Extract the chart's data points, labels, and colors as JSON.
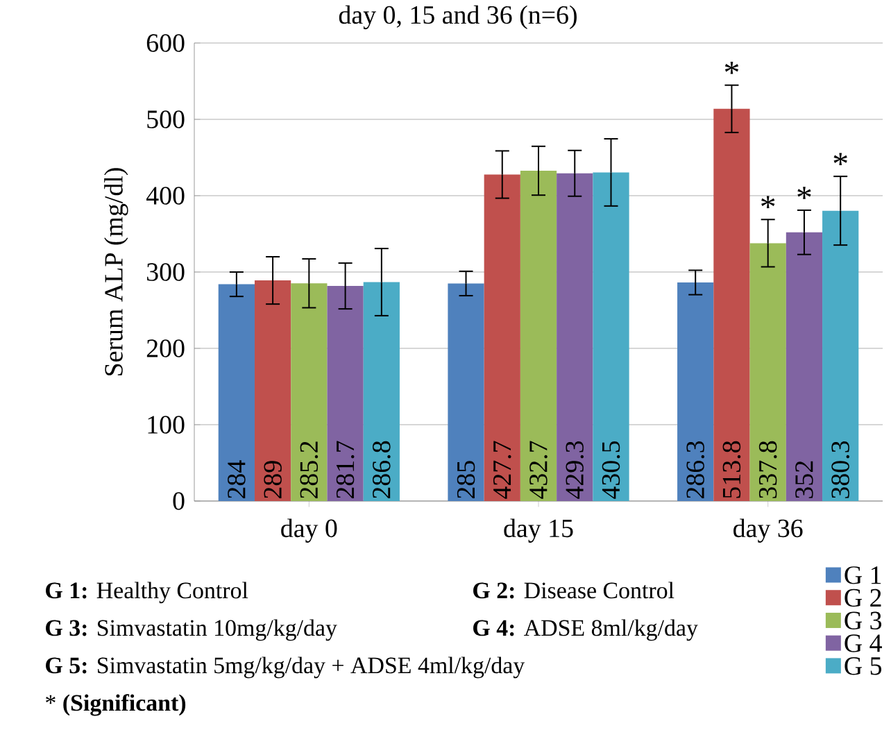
{
  "chart_data": {
    "type": "bar",
    "title": "day 0, 15 and 36 (n=6)",
    "ylabel": "Serum ALP (mg/dl)",
    "categories": [
      "day 0",
      "day 15",
      "day 36"
    ],
    "series": [
      {
        "name": "G 1",
        "color": "#4f81bd",
        "values": [
          284,
          285,
          286.3
        ],
        "errors": [
          16,
          16,
          16
        ]
      },
      {
        "name": "G 2",
        "color": "#c0504d",
        "values": [
          289,
          427.7,
          513.8
        ],
        "errors": [
          31,
          31,
          31
        ]
      },
      {
        "name": "G 3",
        "color": "#9bbb59",
        "values": [
          285.2,
          432.7,
          337.8
        ],
        "errors": [
          32,
          32,
          31
        ]
      },
      {
        "name": "G 4",
        "color": "#8064a2",
        "values": [
          281.7,
          429.3,
          352
        ],
        "errors": [
          30,
          30,
          29
        ]
      },
      {
        "name": "G 5",
        "color": "#4bacc6",
        "values": [
          286.8,
          430.5,
          380.3
        ],
        "errors": [
          44,
          44,
          45
        ]
      }
    ],
    "ylim": [
      0,
      600
    ],
    "yticks": [
      0,
      100,
      200,
      300,
      400,
      500,
      600
    ],
    "grid": "y",
    "legend": "bottom right",
    "data_labels": true,
    "annotations": [
      "*",
      "*",
      "*",
      "*",
      "**G 1:** Healthy Control",
      "**G 2:** Disease Control",
      "**G 3:** Simvastatin 10mg/kg/day",
      "**G 4:** ADSE 8ml/kg/day",
      "**G 5:** Simvastatin 5mg/kg/day + ADSE 4ml/kg/day",
      "* **(Significant)**"
    ]
  }
}
